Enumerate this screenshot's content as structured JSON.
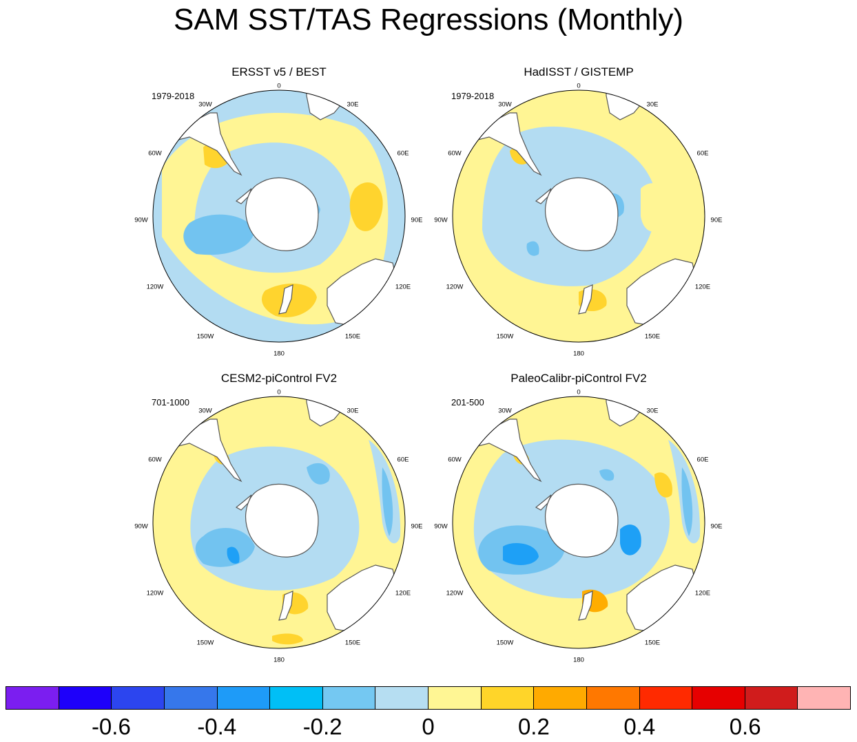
{
  "figure": {
    "title": "SAM SST/TAS Regressions (Monthly)",
    "fill_colors": {
      "land": "#ffffff",
      "neg1": "#b3dcf2",
      "neg2": "#72c3f0",
      "neg3": "#1ea0f6",
      "neg4": "#00c0f8",
      "pos1": "#fff594",
      "pos2": "#ffd42e",
      "pos3": "#ffad00"
    }
  },
  "panels": [
    {
      "title": "ERSST v5 / BEST",
      "period": "1979-2018"
    },
    {
      "title": "HadISST / GISTEMP",
      "period": "1979-2018"
    },
    {
      "title": "CESM2-piControl FV2",
      "period": "701-1000"
    },
    {
      "title": "PaleoCalibr-piControl FV2",
      "period": "201-500"
    }
  ],
  "longitude_labels": [
    "0",
    "30E",
    "60E",
    "90E",
    "120E",
    "150E",
    "180",
    "150W",
    "120W",
    "90W",
    "60W",
    "30W"
  ],
  "colorbar": {
    "colors": [
      "#7b1ef0",
      "#1e00fa",
      "#2c45ef",
      "#3677eb",
      "#1e9bf8",
      "#00bff6",
      "#74c8f2",
      "#b6def2",
      "#fff694",
      "#ffd529",
      "#ffaa00",
      "#ff7800",
      "#ff2a00",
      "#e60000",
      "#d01c1c",
      "#ffb4b4"
    ],
    "tick_labels": [
      "-0.6",
      "-0.4",
      "-0.2",
      "0",
      "0.2",
      "0.4",
      "0.6"
    ],
    "tick_values": [
      -0.6,
      -0.4,
      -0.2,
      0,
      0.2,
      0.4,
      0.6
    ],
    "min": -0.8,
    "max": 0.8
  }
}
